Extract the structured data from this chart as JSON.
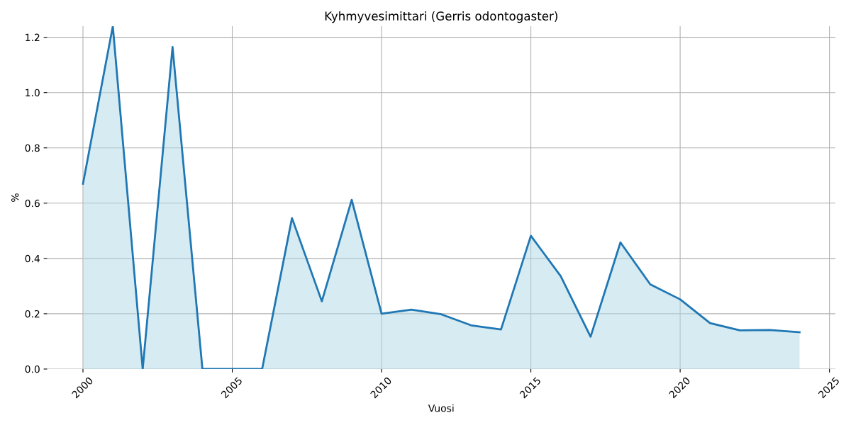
{
  "chart_data": {
    "type": "area",
    "title": "Kyhmyvesimittari (Gerris odontogaster)",
    "xlabel": "Vuosi",
    "ylabel": "%",
    "x": [
      2000,
      2001,
      2002,
      2003,
      2004,
      2005,
      2006,
      2007,
      2008,
      2009,
      2010,
      2011,
      2012,
      2013,
      2014,
      2015,
      2016,
      2017,
      2018,
      2019,
      2020,
      2021,
      2022,
      2023,
      2024
    ],
    "series": [
      {
        "color": "#1f77b4",
        "values": [
          0.67,
          1.24,
          0,
          1.165,
          0,
          0,
          0,
          0.546,
          0.245,
          0.612,
          0.2,
          0.215,
          0.198,
          0.158,
          0.143,
          0.482,
          0.336,
          0.117,
          0.458,
          0.306,
          0.252,
          0.166,
          0.14,
          0.141,
          0.133
        ]
      }
    ],
    "xlim": [
      1998.8,
      2025.2
    ],
    "xticks": [
      2000,
      2005,
      2010,
      2015,
      2020,
      2025
    ],
    "ylim": [
      0,
      1.24
    ],
    "yticks": [
      {
        "value": 0,
        "label": "0.0"
      },
      0.2,
      0.4,
      0.6,
      0.8,
      {
        "value": 1,
        "label": "1.0"
      },
      1.2
    ],
    "grid": true,
    "legend": false
  }
}
